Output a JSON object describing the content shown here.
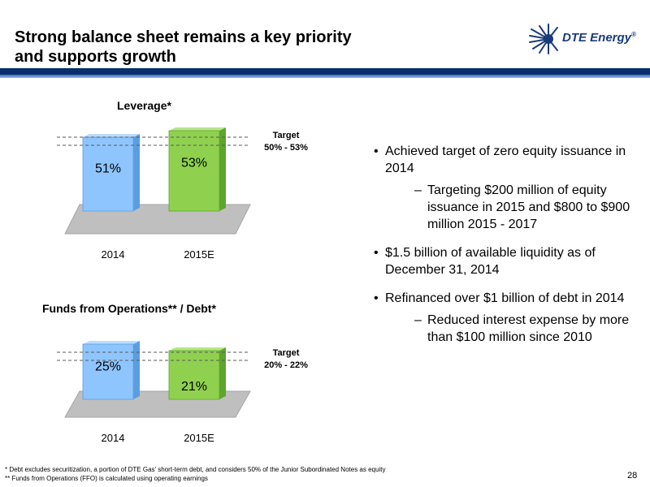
{
  "title": {
    "line1": "Strong balance sheet remains a key priority",
    "line2": "and supports growth"
  },
  "logo": {
    "text": "DTE Energy",
    "suffix": "®",
    "icon": "dte-sun-burst-icon"
  },
  "colors": {
    "header_dark": "#0b2f6b",
    "header_light": "#3a6bbd",
    "bar_2014": "#8ec5ff",
    "bar_2015E": "#8fd14f",
    "platform": "#bfbfbf"
  },
  "chart_data": [
    {
      "type": "bar",
      "title": "Leverage*",
      "categories": [
        "2014",
        "2015E"
      ],
      "values": [
        51,
        53
      ],
      "value_labels": [
        "51%",
        "53%"
      ],
      "target": {
        "label": "Target",
        "range_text": "50% - 53%",
        "range": [
          50,
          53
        ]
      }
    },
    {
      "type": "bar",
      "title": "Funds from Operations** / Debt*",
      "categories": [
        "2014",
        "2015E"
      ],
      "values": [
        25,
        21
      ],
      "value_labels": [
        "25%",
        "21%"
      ],
      "target": {
        "label": "Target",
        "range_text": "20% - 22%",
        "range": [
          20,
          22
        ]
      }
    }
  ],
  "bullets": [
    {
      "marker": "•",
      "text": "Achieved target of zero equity issuance in 2014",
      "sub": [
        {
          "marker": "–",
          "text": "Targeting $200 million of equity issuance in 2015 and $800 to $900 million 2015 - 2017"
        }
      ]
    },
    {
      "marker": "•",
      "text": "$1.5 billion of available liquidity as of December 31, 2014",
      "sub": []
    },
    {
      "marker": "•",
      "text": "Refinanced over $1 billion of debt in 2014",
      "sub": [
        {
          "marker": "–",
          "text": "Reduced interest expense by more than $100 million since 2010"
        }
      ]
    }
  ],
  "footnotes": [
    "*  Debt excludes securitization, a portion of DTE Gas' short-term debt, and considers 50% of the Junior Subordinated Notes as equity",
    "**  Funds from Operations (FFO) is calculated using operating earnings"
  ],
  "page_number": "28"
}
